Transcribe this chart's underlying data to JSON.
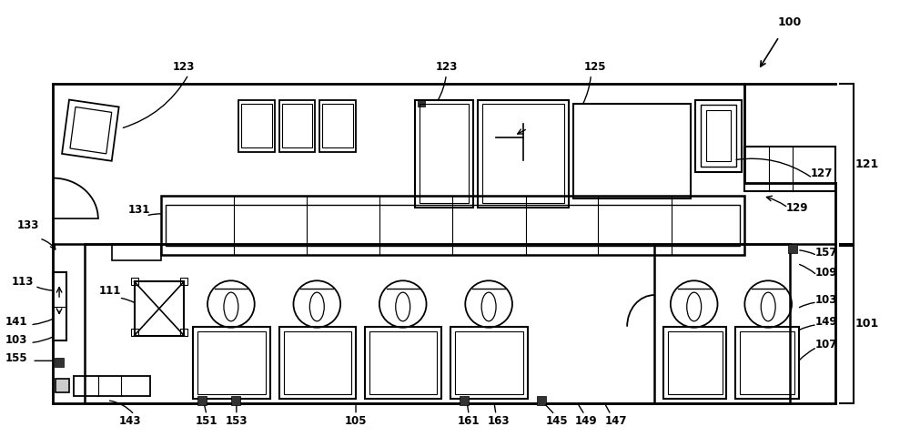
{
  "bg_color": "#ffffff",
  "fig_width": 10.0,
  "fig_height": 4.91,
  "dpi": 100
}
